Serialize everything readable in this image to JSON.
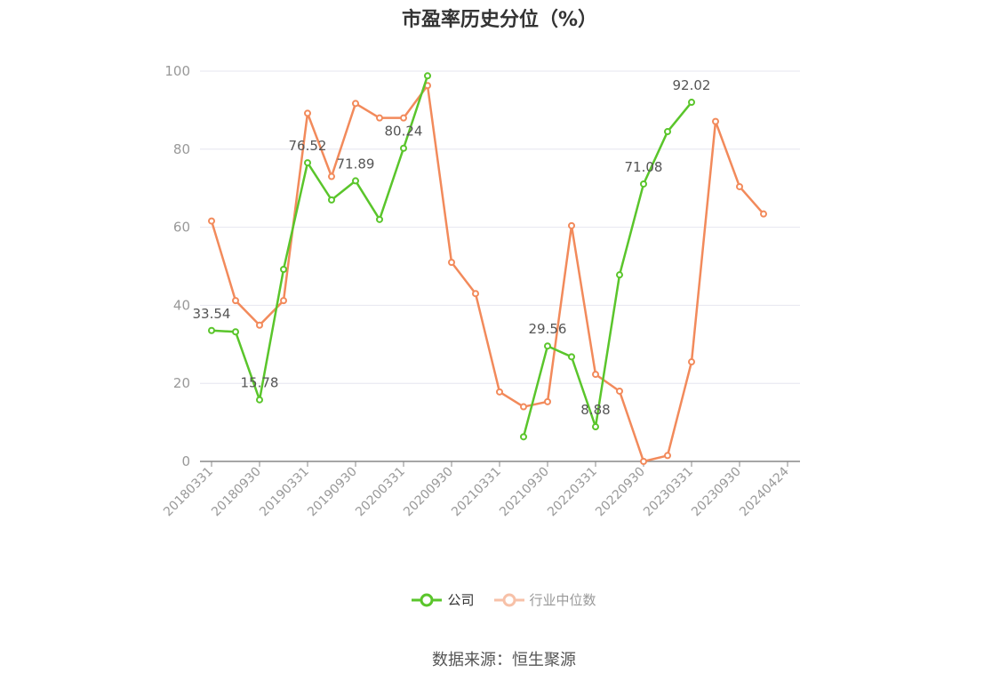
{
  "chart_data": {
    "type": "line",
    "title": "市盈率历史分位（%）",
    "source": "数据来源：恒生聚源",
    "y_ticks": [
      "0",
      "20",
      "40",
      "60",
      "80",
      "100"
    ],
    "ylim": [
      0,
      100
    ],
    "grid": true,
    "legend_position": "bottom",
    "x": [
      "20180331",
      "20180630",
      "20180930",
      "20181231",
      "20190331",
      "20190630",
      "20190930",
      "20191231",
      "20200331",
      "20200630",
      "20200930",
      "20201231",
      "20210331",
      "20210630",
      "20210930",
      "20211231",
      "20220331",
      "20220630",
      "20220930",
      "20221231",
      "20230331",
      "20230630",
      "20230930",
      "20231231",
      "20240424"
    ],
    "x_tick_labels": [
      "20180331",
      "20180930",
      "20190331",
      "20190930",
      "20200331",
      "20200930",
      "20210331",
      "20210930",
      "20220331",
      "20220930",
      "20230331",
      "20230930",
      "20240424"
    ],
    "series": [
      {
        "name": "公司",
        "color": "#5ac52b",
        "values": [
          33.54,
          33.2,
          15.78,
          49.2,
          76.52,
          67.0,
          71.89,
          62.0,
          80.24,
          98.8,
          null,
          null,
          null,
          6.3,
          29.56,
          26.8,
          8.88,
          47.8,
          71.08,
          84.5,
          92.02,
          null,
          null,
          null,
          null
        ],
        "labels": {
          "0": "33.54",
          "2": "15.78",
          "4": "76.52",
          "6": "71.89",
          "8": "80.24",
          "14": "29.56",
          "16": "8.88",
          "18": "71.08",
          "20": "92.02"
        }
      },
      {
        "name": "行业中位数",
        "color": "#f28a5b",
        "values": [
          61.6,
          41.2,
          34.9,
          41.2,
          89.2,
          73.0,
          91.7,
          88.0,
          88.0,
          96.3,
          51.0,
          43.0,
          17.8,
          14.0,
          15.3,
          60.4,
          22.3,
          18.0,
          0.0,
          1.5,
          25.5,
          87.1,
          70.4,
          63.4,
          null
        ]
      }
    ]
  }
}
